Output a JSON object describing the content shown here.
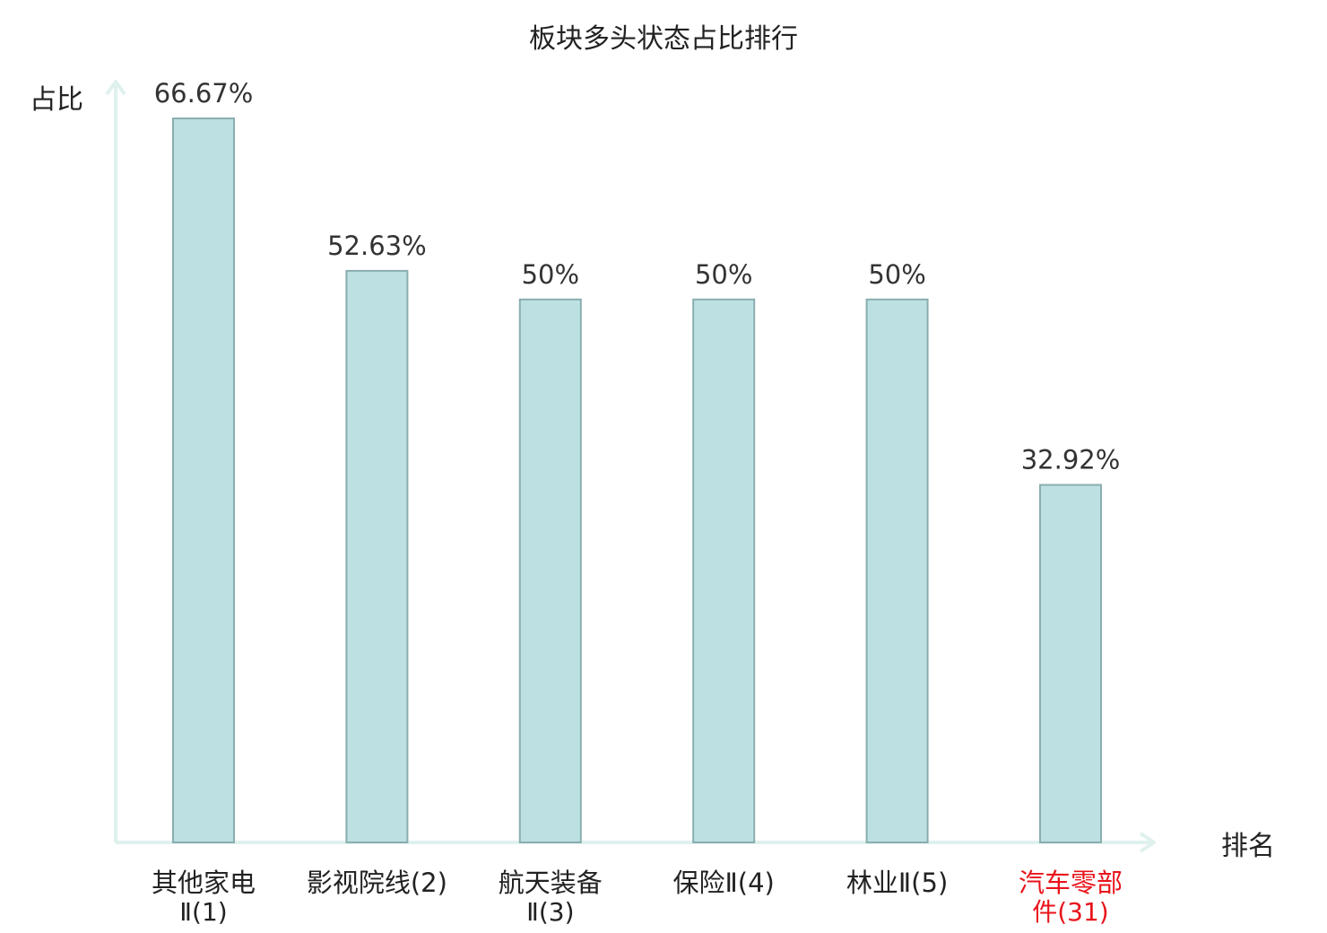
{
  "chart_data": {
    "type": "bar",
    "title": "板块多头状态占比排行",
    "ylabel": "占比",
    "xlabel": "排名",
    "ylim": [
      0,
      70
    ],
    "grid": false,
    "legend": "none",
    "categories": [
      [
        "其他家电",
        "Ⅱ(1)"
      ],
      [
        "影视院线(2)"
      ],
      [
        "航天装备",
        "Ⅱ(3)"
      ],
      [
        "保险Ⅱ(4)"
      ],
      [
        "林业Ⅱ(5)"
      ],
      [
        "汽车零部",
        "件(31)"
      ]
    ],
    "values": [
      66.67,
      52.63,
      50,
      50,
      50,
      32.92
    ],
    "value_labels": [
      "66.67%",
      "52.63%",
      "50%",
      "50%",
      "50%",
      "32.92%"
    ],
    "highlight_index": 5,
    "colors": {
      "bar_fill": "#bde1e3",
      "bar_stroke": "#8aaeb0",
      "axis": "#dff1ee",
      "text": "#222222",
      "value_text": "#333333",
      "highlight_text": "#e8141b",
      "category_suffix_text": "#555555"
    }
  }
}
